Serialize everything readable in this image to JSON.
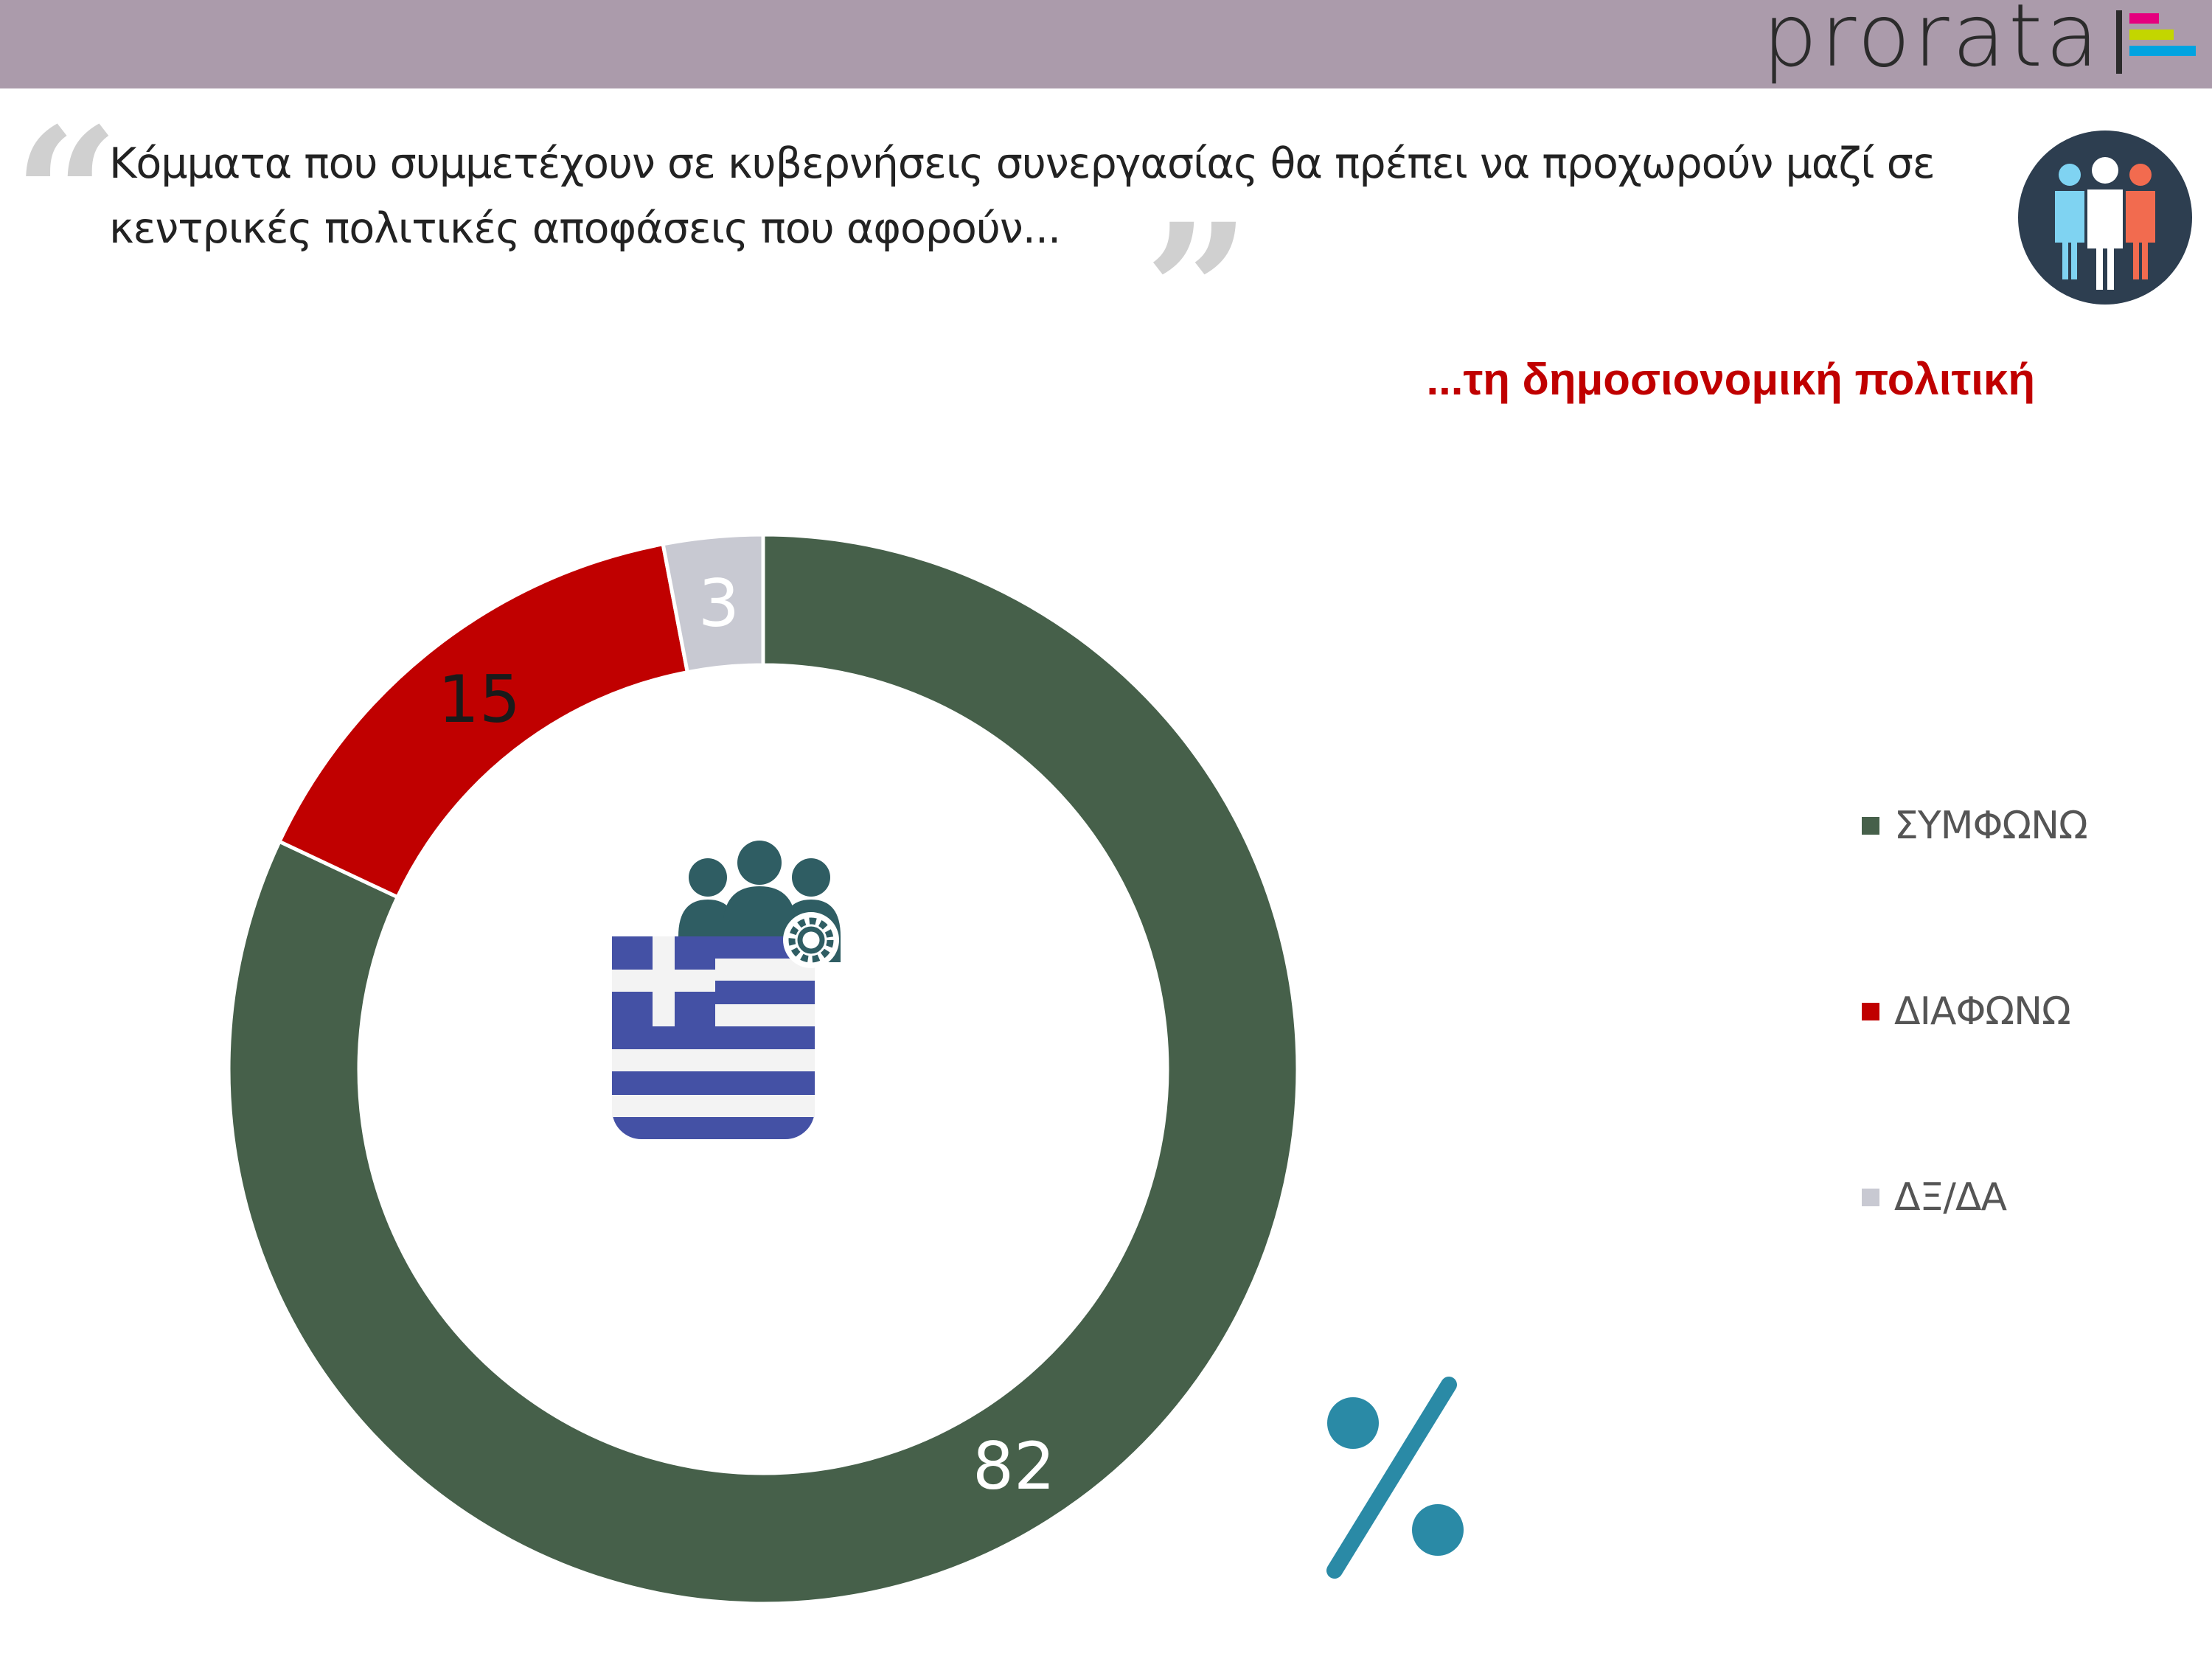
{
  "header": {
    "logo_text": "prorata",
    "logo_bar_colors": [
      "#e5007e",
      "#c3d600",
      "#00a3e0"
    ]
  },
  "question": {
    "text": "Κόμματα που συμμετέχουν σε κυβερνήσεις συνεργασίας θα πρέπει να προχωρούν μαζί σε κεντρικές πολιτικές αποφάσεις που αφορούν..."
  },
  "subtitle": "...τη δημοσιονομική πολιτική",
  "icons": {
    "top_right": "people-group-icon",
    "center": "greek-flag-with-team-icon",
    "bottom": "percent-icon"
  },
  "chart_data": {
    "type": "pie",
    "donut": true,
    "title": "...τη δημοσιονομική πολιτική",
    "categories": [
      "ΣΥΜΦΩΝΩ",
      "ΔΙΑΦΩΝΩ",
      "ΔΞ/ΔΑ"
    ],
    "values": [
      82,
      15,
      3
    ],
    "data_labels": [
      "82",
      "15",
      "3"
    ],
    "colors": [
      "#46604a",
      "#c00000",
      "#c8c9d2"
    ],
    "label_colors": [
      "#ffffff",
      "#1a1a1a",
      "#ffffff"
    ],
    "legend_position": "right",
    "unit": "%"
  }
}
